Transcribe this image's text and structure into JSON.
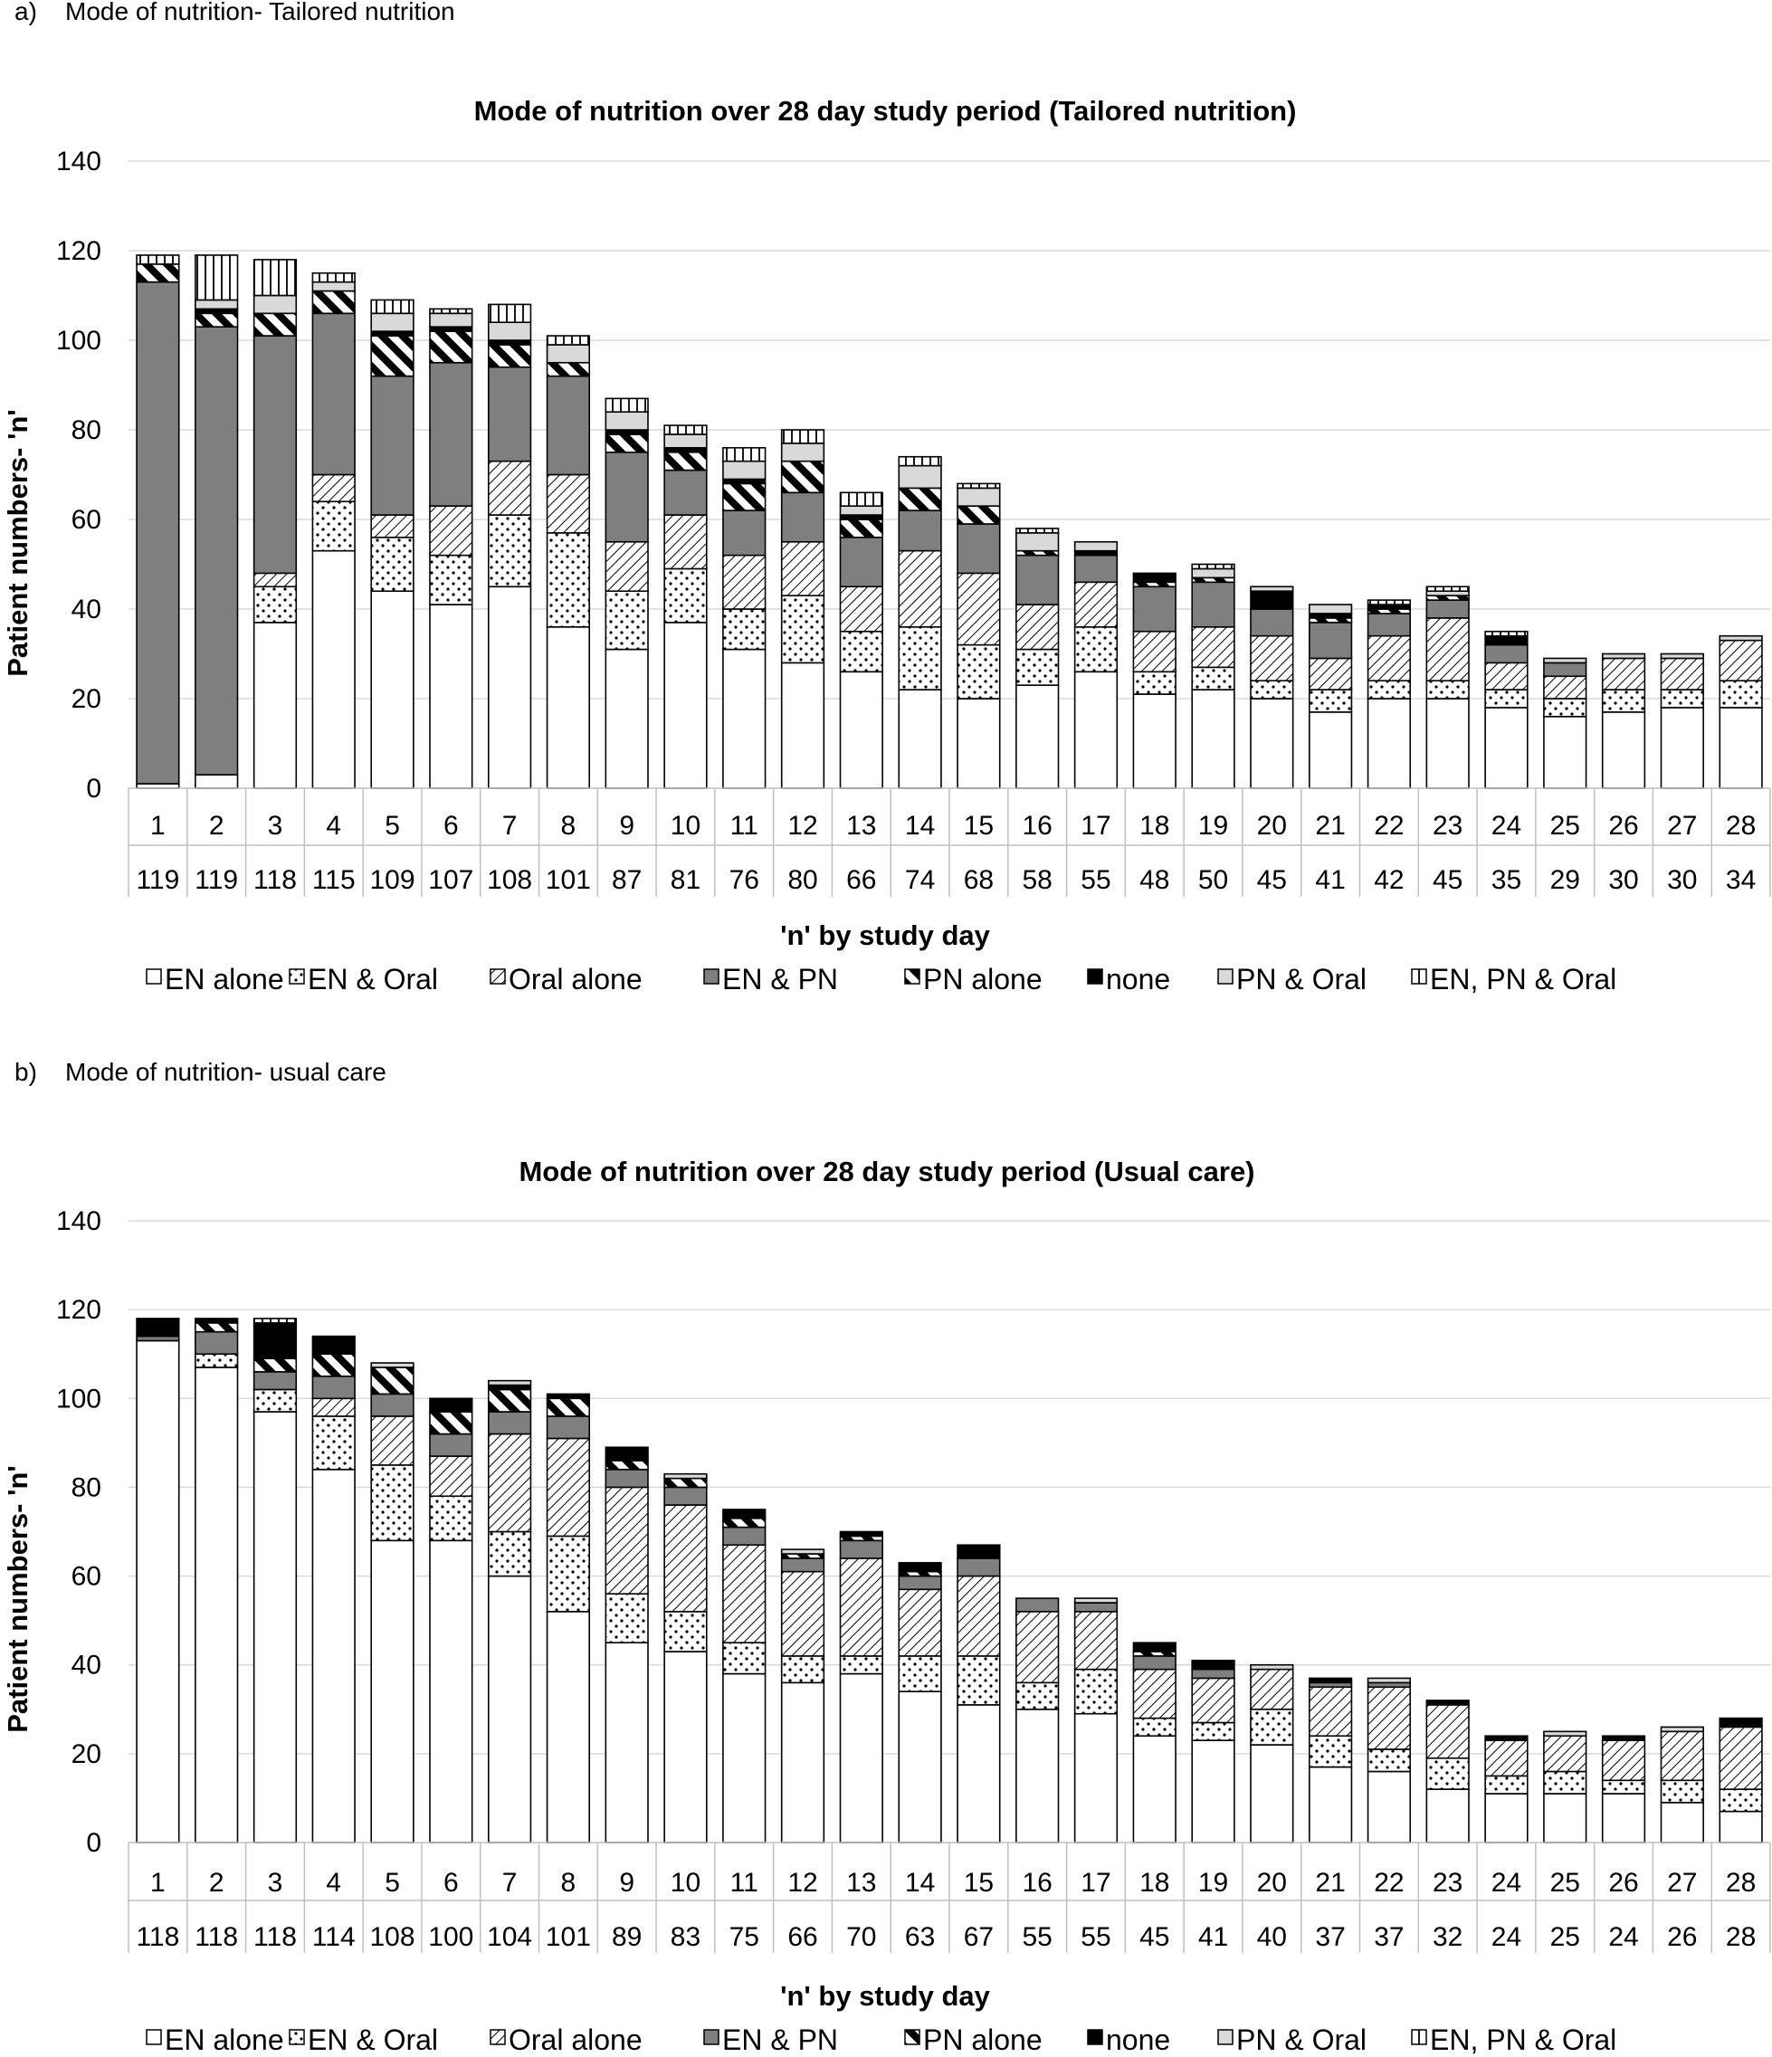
{
  "categories_order": [
    "EN alone",
    "EN & Oral",
    "Oral alone",
    "EN & PN",
    "PN alone",
    "none",
    "PN & Oral",
    "EN, PN & Oral"
  ],
  "colors": {
    "background": "#ffffff",
    "ink": "#000000",
    "en_pn": "#7f7f7f",
    "pn_oral": "#d9d9d9",
    "grid": "#d9d9d9"
  },
  "chart_data": [
    {
      "type": "bar",
      "stacked": true,
      "panel_label": "a)",
      "panel_caption": "Mode of nutrition- Tailored nutrition",
      "title": "Mode of nutrition over 28 day study period (Tailored nutrition)",
      "ylabel": "Patient numbers- 'n'",
      "xlabel": "'n' by study day",
      "ylim": [
        0,
        140
      ],
      "yticks": [
        0,
        20,
        40,
        60,
        80,
        100,
        120,
        140
      ],
      "grid": true,
      "legend_position": "bottom",
      "categories": [
        "1",
        "2",
        "3",
        "4",
        "5",
        "6",
        "7",
        "8",
        "9",
        "10",
        "11",
        "12",
        "13",
        "14",
        "15",
        "16",
        "17",
        "18",
        "19",
        "20",
        "21",
        "22",
        "23",
        "24",
        "25",
        "26",
        "27",
        "28"
      ],
      "n_row": [
        "119",
        "119",
        "118",
        "115",
        "109",
        "107",
        "108",
        "101",
        "87",
        "81",
        "76",
        "80",
        "66",
        "74",
        "68",
        "58",
        "55",
        "48",
        "50",
        "45",
        "41",
        "42",
        "45",
        "35",
        "29",
        "30",
        "30",
        "34"
      ],
      "series": [
        {
          "name": "EN alone",
          "pattern": "white",
          "values": [
            1,
            3,
            37,
            53,
            44,
            41,
            45,
            36,
            31,
            37,
            31,
            28,
            26,
            22,
            20,
            23,
            26,
            21,
            22,
            20,
            17,
            20,
            20,
            18,
            16,
            17,
            18,
            18
          ]
        },
        {
          "name": "EN & Oral",
          "pattern": "dots",
          "values": [
            0,
            0,
            8,
            11,
            12,
            11,
            16,
            21,
            13,
            12,
            9,
            15,
            9,
            14,
            12,
            8,
            10,
            5,
            5,
            4,
            5,
            4,
            4,
            4,
            4,
            5,
            4,
            6
          ]
        },
        {
          "name": "Oral alone",
          "pattern": "hatch",
          "values": [
            0,
            0,
            3,
            6,
            5,
            11,
            12,
            13,
            11,
            12,
            12,
            12,
            10,
            17,
            16,
            10,
            10,
            9,
            9,
            10,
            7,
            10,
            14,
            6,
            5,
            7,
            7,
            9
          ]
        },
        {
          "name": "EN & PN",
          "pattern": "dark-gray",
          "values": [
            112,
            100,
            53,
            36,
            31,
            32,
            21,
            22,
            20,
            10,
            10,
            11,
            11,
            9,
            11,
            11,
            6,
            10,
            10,
            6,
            8,
            5,
            4,
            4,
            3,
            0,
            0,
            0
          ]
        },
        {
          "name": "PN alone",
          "pattern": "thick-stripe",
          "values": [
            4,
            3,
            5,
            5,
            9,
            7,
            5,
            3,
            4,
            4,
            6,
            7,
            4,
            5,
            4,
            1,
            0,
            1,
            1,
            0,
            1,
            1,
            1,
            0,
            0,
            0,
            0,
            0
          ]
        },
        {
          "name": "none",
          "pattern": "black",
          "values": [
            0,
            1,
            0,
            0,
            1,
            1,
            1,
            0,
            1,
            1,
            1,
            0,
            1,
            0,
            0,
            0,
            1,
            2,
            0,
            4,
            1,
            1,
            0,
            2,
            0,
            0,
            0,
            0
          ]
        },
        {
          "name": "PN & Oral",
          "pattern": "light-gray",
          "values": [
            0,
            2,
            4,
            2,
            4,
            3,
            4,
            4,
            4,
            3,
            4,
            4,
            2,
            5,
            4,
            4,
            2,
            0,
            2,
            1,
            2,
            0,
            1,
            0,
            1,
            1,
            1,
            1
          ]
        },
        {
          "name": "EN, PN & Oral",
          "pattern": "vertical",
          "values": [
            2,
            10,
            8,
            2,
            3,
            1,
            4,
            2,
            3,
            2,
            3,
            3,
            3,
            2,
            1,
            1,
            0,
            0,
            1,
            0,
            0,
            1,
            1,
            1,
            0,
            0,
            0,
            0
          ]
        }
      ]
    },
    {
      "type": "bar",
      "stacked": true,
      "panel_label": "b)",
      "panel_caption": "Mode of nutrition- usual care",
      "title": "Mode of nutrition over 28 day study period (Usual care)",
      "ylabel": "Patient numbers- 'n'",
      "xlabel": "'n' by study day",
      "ylim": [
        0,
        140
      ],
      "yticks": [
        0,
        20,
        40,
        60,
        80,
        100,
        120,
        140
      ],
      "grid": true,
      "legend_position": "bottom",
      "categories": [
        "1",
        "2",
        "3",
        "4",
        "5",
        "6",
        "7",
        "8",
        "9",
        "10",
        "11",
        "12",
        "13",
        "14",
        "15",
        "16",
        "17",
        "18",
        "19",
        "20",
        "21",
        "22",
        "23",
        "24",
        "25",
        "26",
        "27",
        "28"
      ],
      "n_row": [
        "118",
        "118",
        "118",
        "114",
        "108",
        "100",
        "104",
        "101",
        "89",
        "83",
        "75",
        "66",
        "70",
        "63",
        "67",
        "55",
        "55",
        "45",
        "41",
        "40",
        "37",
        "37",
        "32",
        "24",
        "25",
        "24",
        "26",
        "28"
      ],
      "series": [
        {
          "name": "EN alone",
          "pattern": "white",
          "values": [
            113,
            107,
            97,
            84,
            68,
            68,
            60,
            52,
            45,
            43,
            38,
            36,
            38,
            34,
            31,
            30,
            29,
            24,
            23,
            22,
            17,
            16,
            12,
            11,
            11,
            11,
            9,
            7
          ]
        },
        {
          "name": "EN & Oral",
          "pattern": "dots",
          "values": [
            0,
            3,
            5,
            12,
            17,
            10,
            10,
            17,
            11,
            9,
            7,
            6,
            4,
            8,
            11,
            6,
            10,
            4,
            4,
            8,
            7,
            5,
            7,
            4,
            5,
            3,
            5,
            5
          ]
        },
        {
          "name": "Oral alone",
          "pattern": "hatch",
          "values": [
            0,
            0,
            0,
            4,
            11,
            9,
            22,
            22,
            24,
            24,
            22,
            19,
            22,
            15,
            18,
            16,
            13,
            11,
            10,
            9,
            11,
            14,
            12,
            8,
            8,
            9,
            11,
            14
          ]
        },
        {
          "name": "EN & PN",
          "pattern": "dark-gray",
          "values": [
            1,
            5,
            4,
            5,
            5,
            5,
            5,
            5,
            4,
            4,
            4,
            3,
            4,
            3,
            4,
            3,
            2,
            3,
            2,
            0,
            1,
            1,
            0,
            0,
            0,
            0,
            0,
            0
          ]
        },
        {
          "name": "PN alone",
          "pattern": "thick-stripe",
          "values": [
            0,
            2,
            3,
            5,
            6,
            5,
            5,
            4,
            2,
            2,
            2,
            1,
            1,
            1,
            0,
            0,
            0,
            1,
            0,
            0,
            0,
            0,
            0,
            0,
            0,
            0,
            0,
            0
          ]
        },
        {
          "name": "none",
          "pattern": "black",
          "values": [
            4,
            1,
            8,
            4,
            0,
            3,
            1,
            1,
            3,
            0,
            2,
            0,
            1,
            2,
            3,
            0,
            0,
            2,
            2,
            0,
            1,
            0,
            1,
            1,
            0,
            1,
            0,
            2
          ]
        },
        {
          "name": "PN & Oral",
          "pattern": "light-gray",
          "values": [
            0,
            0,
            0,
            0,
            1,
            0,
            1,
            0,
            0,
            1,
            0,
            1,
            0,
            0,
            0,
            0,
            1,
            0,
            0,
            1,
            0,
            1,
            0,
            0,
            1,
            0,
            1,
            0
          ]
        },
        {
          "name": "EN, PN & Oral",
          "pattern": "vertical",
          "values": [
            0,
            0,
            1,
            0,
            0,
            0,
            0,
            0,
            0,
            0,
            0,
            0,
            0,
            0,
            0,
            0,
            0,
            0,
            0,
            0,
            0,
            0,
            0,
            0,
            0,
            0,
            0,
            0
          ]
        }
      ]
    }
  ]
}
